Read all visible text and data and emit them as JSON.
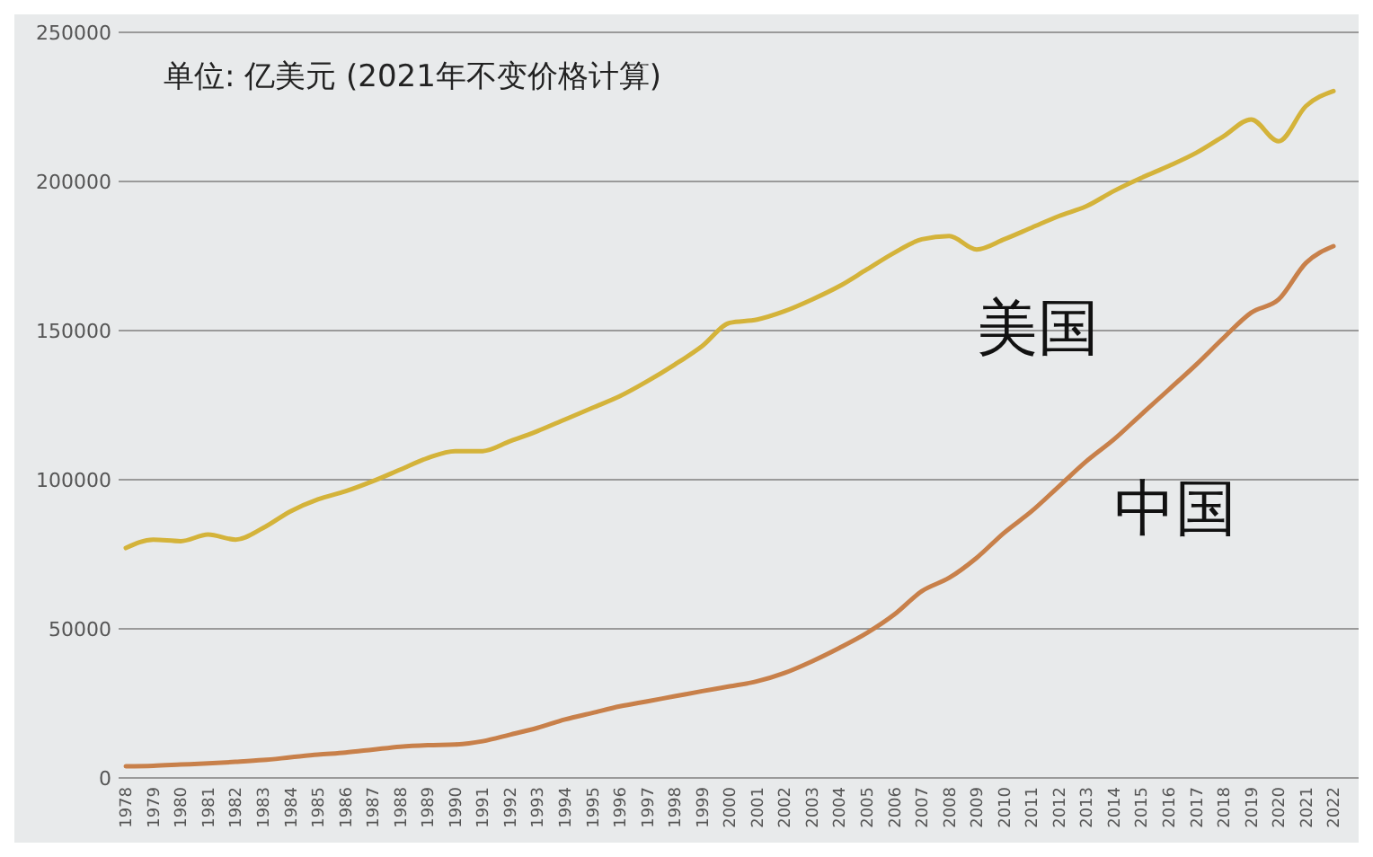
{
  "chart_data": {
    "type": "line",
    "title": "单位: 亿美元 (2021年不变价格计算)",
    "categories": [
      "1978",
      "1979",
      "1980",
      "1981",
      "1982",
      "1983",
      "1984",
      "1985",
      "1986",
      "1987",
      "1988",
      "1989",
      "1990",
      "1991",
      "1992",
      "1993",
      "1994",
      "1995",
      "1996",
      "1997",
      "1998",
      "1999",
      "2000",
      "2001",
      "2002",
      "2003",
      "2004",
      "2005",
      "2006",
      "2007",
      "2008",
      "2009",
      "2010",
      "2011",
      "2012",
      "2013",
      "2014",
      "2015",
      "2016",
      "2017",
      "2018",
      "2019",
      "2020",
      "2021",
      "2022"
    ],
    "series": [
      {
        "name": "美国",
        "color": "#d4b33a",
        "values": [
          77100,
          79900,
          79400,
          81600,
          79900,
          83800,
          89400,
          93400,
          96100,
          99500,
          103400,
          107300,
          109600,
          109600,
          112900,
          116300,
          120200,
          124100,
          128000,
          133000,
          138600,
          144800,
          152600,
          153700,
          156500,
          160400,
          164900,
          170500,
          176100,
          180600,
          181700,
          177200,
          180600,
          184500,
          188400,
          191700,
          196800,
          201200,
          205200,
          209600,
          215200,
          220800,
          213500,
          225300,
          230300
        ]
      },
      {
        "name": "中国",
        "color": "#c8804a",
        "values": [
          3900,
          4100,
          4500,
          4900,
          5400,
          6000,
          6900,
          7800,
          8500,
          9500,
          10500,
          11000,
          11200,
          12300,
          14500,
          16800,
          19600,
          21800,
          24000,
          25700,
          27400,
          29100,
          30700,
          32400,
          35200,
          39100,
          43600,
          48600,
          54800,
          62600,
          67100,
          73800,
          82200,
          89400,
          97800,
          106200,
          113500,
          121900,
          130200,
          138600,
          147600,
          156000,
          160400,
          172700,
          178300
        ]
      }
    ],
    "ylim": [
      0,
      250000
    ],
    "yticks": [
      0,
      50000,
      100000,
      150000,
      200000,
      250000
    ],
    "grid": "y"
  }
}
